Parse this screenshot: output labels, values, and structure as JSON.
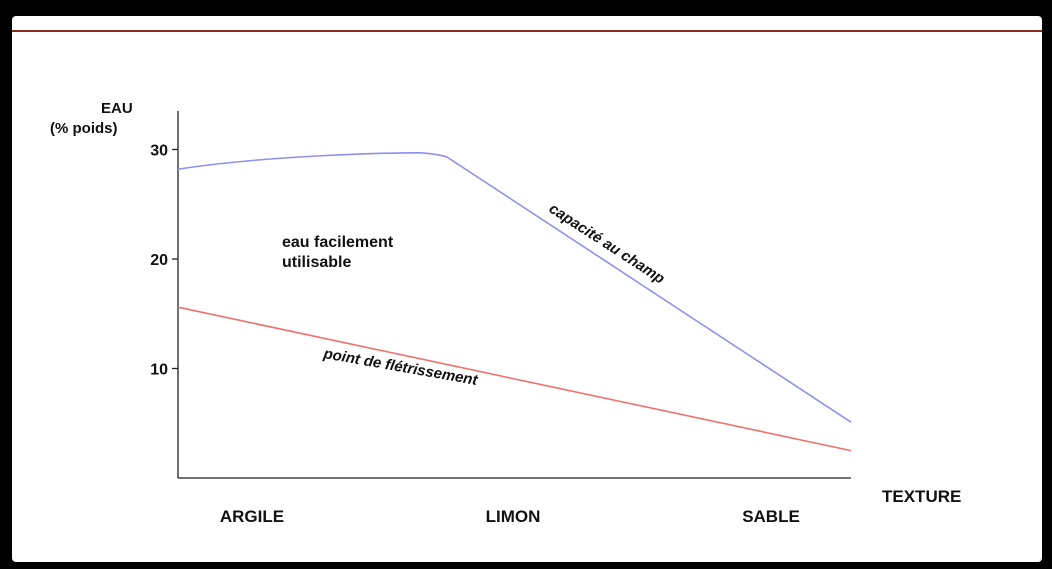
{
  "chart_data": {
    "type": "line",
    "ylabel_line1": "EAU",
    "ylabel_line2": "(% poids)",
    "xlabel": "TEXTURE",
    "categories": [
      "ARGILE",
      "LIMON",
      "SABLE"
    ],
    "y_ticks": [
      {
        "value": 30,
        "label": "30"
      },
      {
        "value": 20,
        "label": "20"
      },
      {
        "value": 10,
        "label": "10"
      }
    ],
    "ylim": [
      0,
      33.5
    ],
    "xlim": [
      0,
      1
    ],
    "series": [
      {
        "name": "capacité au champ",
        "color": "#8f8ff0",
        "points": [
          {
            "x": 0.0,
            "y": 28.2
          },
          {
            "x": 0.24,
            "y": 29.6
          },
          {
            "x": 0.36,
            "y": 29.7
          },
          {
            "x": 0.4,
            "y": 29.3
          },
          {
            "x": 1.0,
            "y": 5.1
          }
        ]
      },
      {
        "name": "point de flétrissement",
        "color": "#f07070",
        "points": [
          {
            "x": 0.0,
            "y": 15.6
          },
          {
            "x": 1.0,
            "y": 2.5
          }
        ]
      }
    ],
    "annotations": {
      "region_line1": "eau facilement",
      "region_line2": "utilisable"
    }
  }
}
